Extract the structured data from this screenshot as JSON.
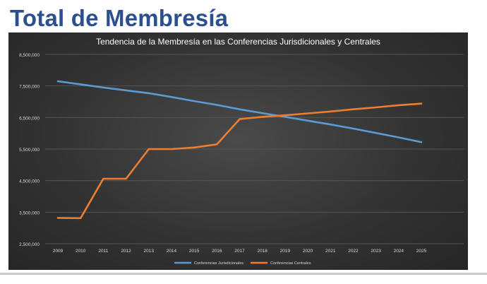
{
  "slide": {
    "title": "Total de Membresía"
  },
  "colors": {
    "jurisdictional": "#5b9bd5",
    "central": "#ed7d31",
    "background": "#333333",
    "grid": "#555555"
  },
  "chart_data": {
    "type": "line",
    "title": "Tendencia de la Membresía en las Conferencias Jurisdicionales y Centrales",
    "xlabel": "",
    "ylabel": "",
    "ylim": [
      2500000,
      8500000
    ],
    "yticks": [
      2500000,
      3500000,
      4500000,
      5500000,
      6500000,
      7500000,
      8500000
    ],
    "ytick_labels": [
      "2,500,000",
      "3,500,000",
      "4,500,000",
      "5,500,000",
      "6,500,000",
      "7,500,000",
      "8,500,000"
    ],
    "grid": true,
    "legend_position": "bottom",
    "x": [
      "2009",
      "2010",
      "2011",
      "2012",
      "2013",
      "2014",
      "2015",
      "2016",
      "2017",
      "2018",
      "2019",
      "2020",
      "2021",
      "2022",
      "2023",
      "2024",
      "2025"
    ],
    "series": [
      {
        "name": "Conferencias Jurisdicionales",
        "color": "#5b9bd5",
        "values": [
          7650000,
          7550000,
          7450000,
          7360000,
          7270000,
          7150000,
          7020000,
          6900000,
          6760000,
          6640000,
          6520000,
          6400000,
          6280000,
          6150000,
          6010000,
          5870000,
          5720000
        ]
      },
      {
        "name": "Conferencias Centrales",
        "color": "#ed7d31",
        "values": [
          3320000,
          3310000,
          4560000,
          4560000,
          5500000,
          5500000,
          5550000,
          5650000,
          6450000,
          6520000,
          6570000,
          6630000,
          6690000,
          6760000,
          6820000,
          6890000,
          6940000
        ]
      }
    ]
  }
}
